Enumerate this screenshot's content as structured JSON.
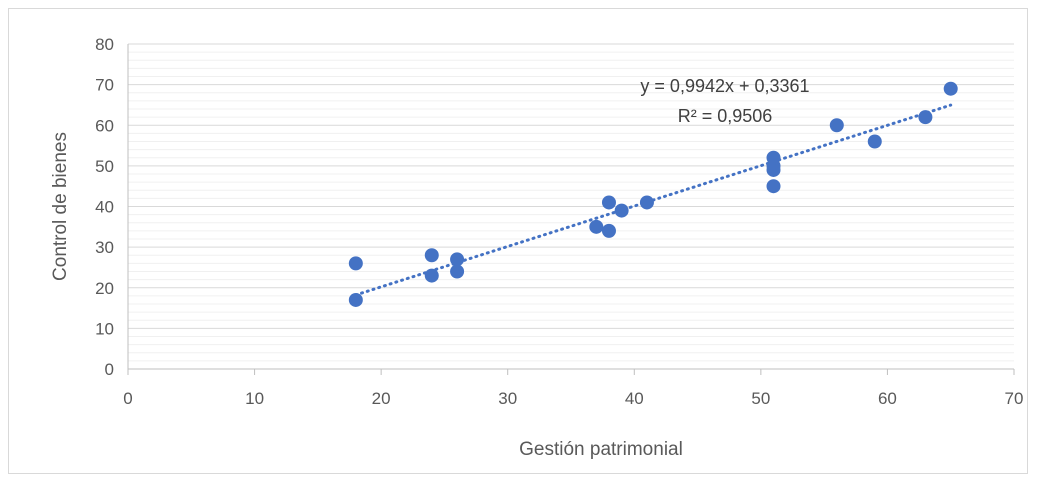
{
  "chart_data": {
    "type": "scatter",
    "title": "",
    "xlabel": "Gestión patrimonial",
    "ylabel": "Control de bienes",
    "xlim": [
      0,
      70
    ],
    "ylim": [
      0,
      80
    ],
    "x_ticks": [
      0,
      10,
      20,
      30,
      40,
      50,
      60,
      70
    ],
    "y_ticks": [
      0,
      10,
      20,
      30,
      40,
      50,
      60,
      70,
      80
    ],
    "grid": true,
    "legend": "none",
    "colors": {
      "points": "#4472C4",
      "trendline": "#4472C4",
      "major_grid": "#d9d9d9",
      "minor_grid": "#f0f0f0"
    },
    "series": [
      {
        "points": [
          [
            18,
            17
          ],
          [
            18,
            26
          ],
          [
            24,
            23
          ],
          [
            24,
            28
          ],
          [
            26,
            24
          ],
          [
            26,
            27
          ],
          [
            37,
            35
          ],
          [
            38,
            34
          ],
          [
            38,
            41
          ],
          [
            39,
            39
          ],
          [
            41,
            41
          ],
          [
            51,
            45
          ],
          [
            51,
            49
          ],
          [
            51,
            50
          ],
          [
            51,
            52
          ],
          [
            56,
            60
          ],
          [
            59,
            56
          ],
          [
            63,
            62
          ],
          [
            65,
            69
          ]
        ]
      }
    ],
    "trendline": {
      "type": "linear",
      "slope": 0.9942,
      "intercept": 0.3361,
      "x_range": [
        18,
        65
      ],
      "equation_label": "y = 0,9942x + 0,3361",
      "r2_label": "R² = 0,9506"
    }
  }
}
